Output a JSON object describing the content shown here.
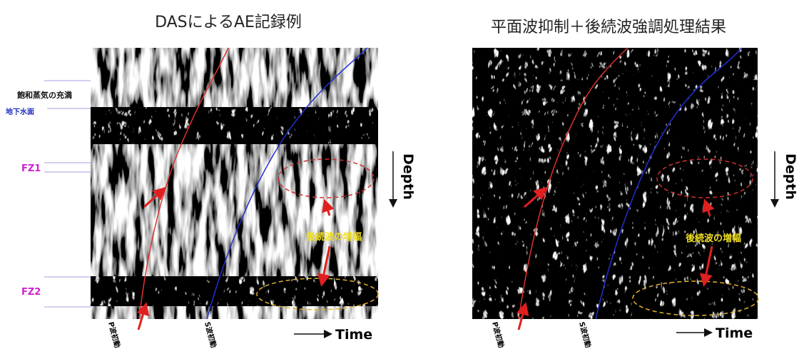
{
  "panels": [
    {
      "title": "DASによるAE記録例",
      "p_label": "P波初動",
      "s_label": "S波初動",
      "annotation": "後続波の増幅",
      "depth": "Depth",
      "time": "Time"
    },
    {
      "title": "平面波抑制＋後続波強調処理結果",
      "p_label": "P波初動",
      "s_label": "S波初動",
      "annotation": "後続波の増幅",
      "depth": "Depth",
      "time": "Time"
    }
  ],
  "side_labels": {
    "steam": "飽和蒸気の充満",
    "water_table": "地下水面",
    "fz1": "FZ1",
    "fz2": "FZ2"
  }
}
